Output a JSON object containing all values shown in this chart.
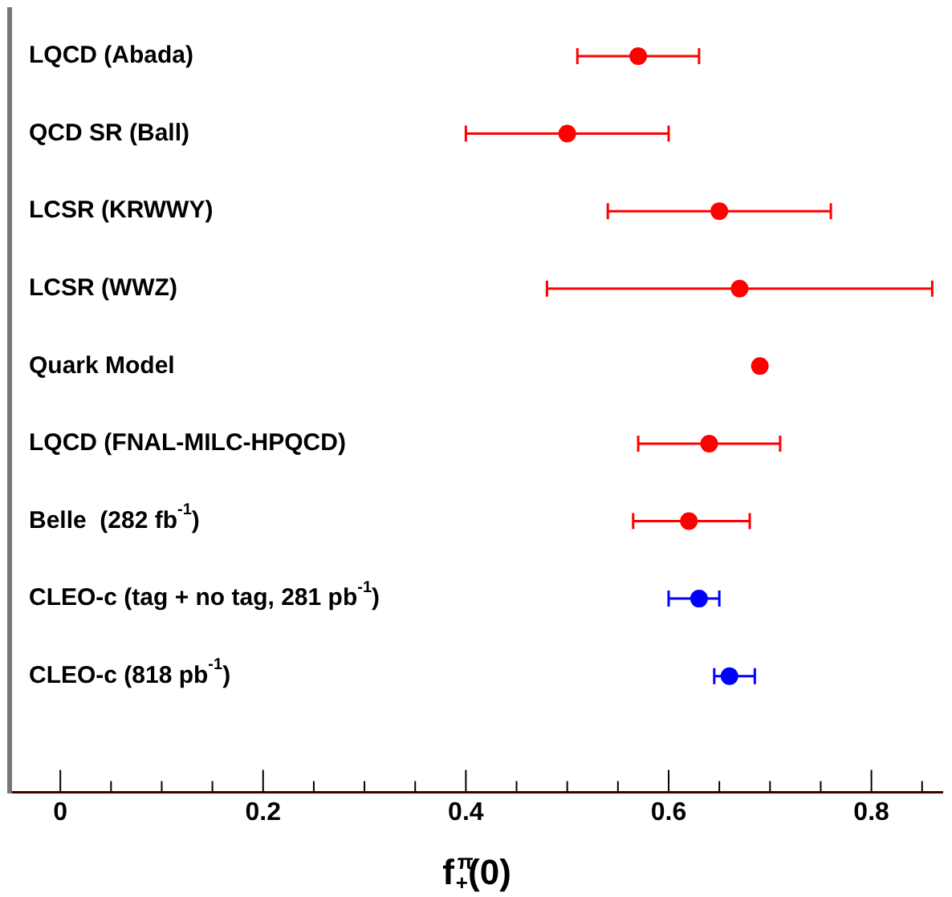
{
  "chart_data": {
    "type": "scatter",
    "orientation": "horizontal",
    "xlabel": "f$_{+}$$^{π}$(0)",
    "categories": [
      "LQCD (Abada)",
      "QCD SR (Ball)",
      "LCSR (KRWWY)",
      "LCSR (WWZ)",
      "Quark Model",
      "LQCD (FNAL-MILC-HPQCD)",
      "Belle  (282 fb$^{-1}$)",
      "CLEO-c (tag + no tag, 281 pb$^{-1}$)",
      "CLEO-c (818 pb$^{-1}$)"
    ],
    "values": [
      0.57,
      0.5,
      0.65,
      0.67,
      0.69,
      0.64,
      0.62,
      0.63,
      0.66
    ],
    "errors": [
      [
        0.51,
        0.63
      ],
      [
        0.4,
        0.6
      ],
      [
        0.54,
        0.76
      ],
      [
        0.48,
        0.86
      ],
      null,
      [
        0.57,
        0.71
      ],
      [
        0.565,
        0.68
      ],
      [
        0.6,
        0.65
      ],
      [
        0.645,
        0.685
      ]
    ],
    "colors": [
      "#ff0000",
      "#ff0000",
      "#ff0000",
      "#ff0000",
      "#ff0000",
      "#ff0000",
      "#ff0000",
      "#0000ff",
      "#0000ff"
    ],
    "xlim": [
      -0.05,
      0.87
    ],
    "xticks": [
      0,
      {
        "value": 0.05,
        "label": null
      },
      {
        "value": 0.1,
        "label": null
      },
      {
        "value": 0.15,
        "label": null
      },
      0.2,
      {
        "value": 0.25,
        "label": null
      },
      {
        "value": 0.3,
        "label": null
      },
      {
        "value": 0.35,
        "label": null
      },
      0.4,
      {
        "value": 0.45,
        "label": null
      },
      {
        "value": 0.5,
        "label": null
      },
      {
        "value": 0.55,
        "label": null
      },
      0.6,
      {
        "value": 0.65,
        "label": null
      },
      {
        "value": 0.7,
        "label": null
      },
      {
        "value": 0.75,
        "label": null
      },
      0.8,
      {
        "value": 0.85,
        "label": null
      }
    ],
    "grid": false,
    "legend": false,
    "marker": "circle"
  }
}
